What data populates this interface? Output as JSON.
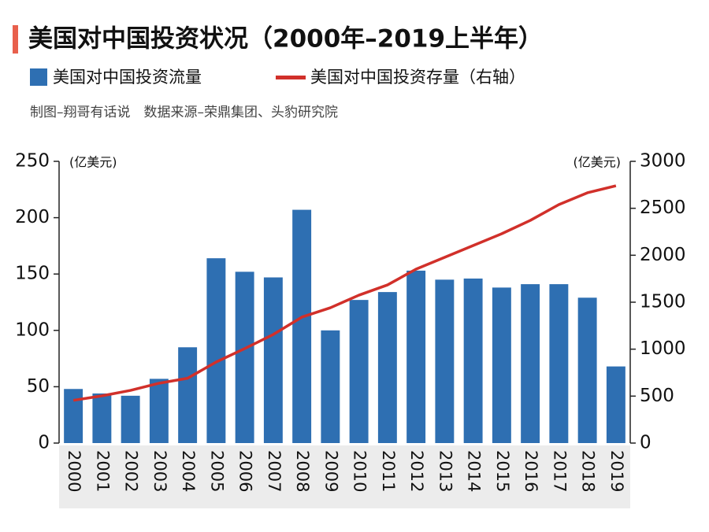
{
  "chart_data": {
    "type": "bar-line",
    "title": "美国对中国投资状况（2000年–2019上半年）",
    "source": "制图–翔哥有话说　数据来源–荣鼎集团、头豹研究院",
    "y_unit": "(亿美元)",
    "y2_unit": "(亿美元)",
    "categories": [
      "2000",
      "2001",
      "2002",
      "2003",
      "2004",
      "2005",
      "2006",
      "2007",
      "2008",
      "2009",
      "2010",
      "2011",
      "2012",
      "2013",
      "2014",
      "2015",
      "2016",
      "2017",
      "2018",
      "2019"
    ],
    "series": [
      {
        "name": "美国对中国投资流量",
        "color": "#2e6fb2",
        "type": "bar",
        "values": [
          48,
          44,
          42,
          57,
          85,
          164,
          152,
          147,
          207,
          100,
          127,
          134,
          153,
          145,
          146,
          138,
          141,
          141,
          129,
          68
        ]
      },
      {
        "name": "美国对中国投资存量（右轴）",
        "color": "#d1302a",
        "type": "line",
        "axis": "y2",
        "values": [
          455,
          503,
          561,
          637,
          690,
          863,
          1006,
          1156,
          1341,
          1441,
          1575,
          1684,
          1852,
          1978,
          2103,
          2229,
          2371,
          2539,
          2665,
          2740
        ]
      }
    ],
    "ylim": [
      0,
      250
    ],
    "yticks": [
      0,
      50,
      100,
      150,
      200,
      250
    ],
    "y2lim": [
      0,
      3000
    ],
    "y2ticks": [
      0,
      500,
      1000,
      1500,
      2000,
      2500,
      3000
    ]
  }
}
